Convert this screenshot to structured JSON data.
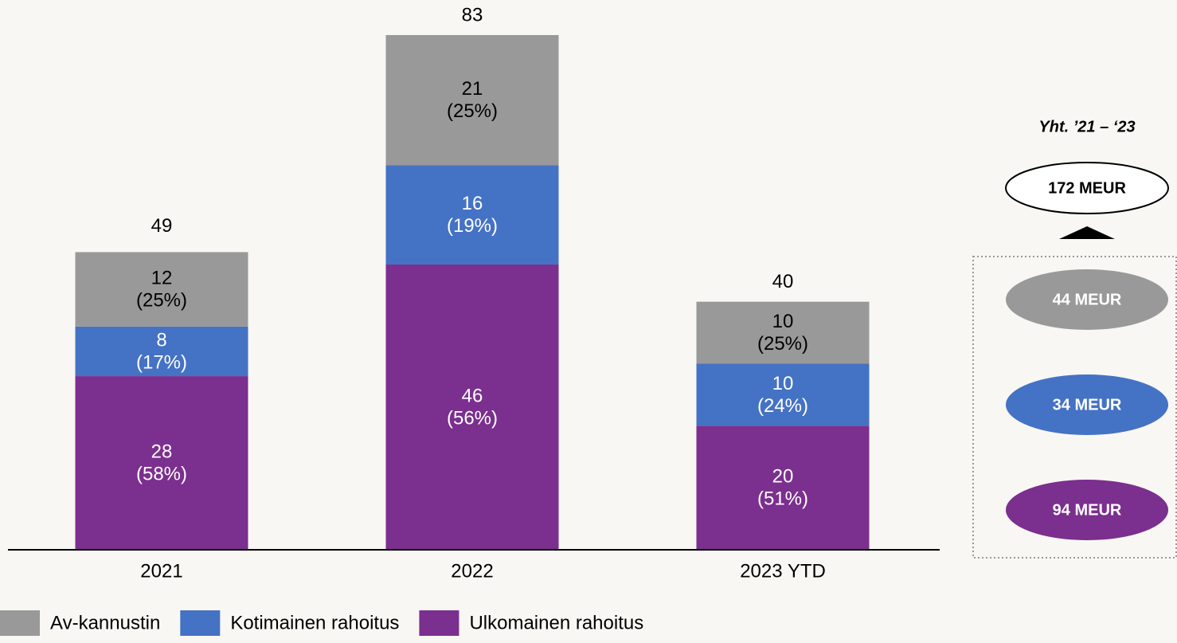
{
  "chart_data": {
    "type": "stacked_bar",
    "categories": [
      "2021",
      "2022",
      "2023 YTD"
    ],
    "series": [
      {
        "name": "Av-kannustin",
        "color": "#999999",
        "values": [
          12,
          21,
          10
        ],
        "share_labels": [
          "(25%)",
          "(25%)",
          "(25%)"
        ]
      },
      {
        "name": "Kotimainen rahoitus",
        "color": "#4472c4",
        "values": [
          8,
          16,
          10
        ],
        "share_labels": [
          "(17%)",
          "(19%)",
          "(24%)"
        ]
      },
      {
        "name": "Ulkomainen rahoitus",
        "color": "#7b2f8e",
        "values": [
          28,
          46,
          20
        ],
        "share_labels": [
          "(58%)",
          "(56%)",
          "(51%)"
        ]
      }
    ],
    "totals": [
      49,
      83,
      40
    ]
  },
  "summary": {
    "title": "Yht. ’21 – ‘23",
    "total": "172 MEUR",
    "items": [
      "44 MEUR",
      "34 MEUR",
      "94 MEUR"
    ]
  }
}
